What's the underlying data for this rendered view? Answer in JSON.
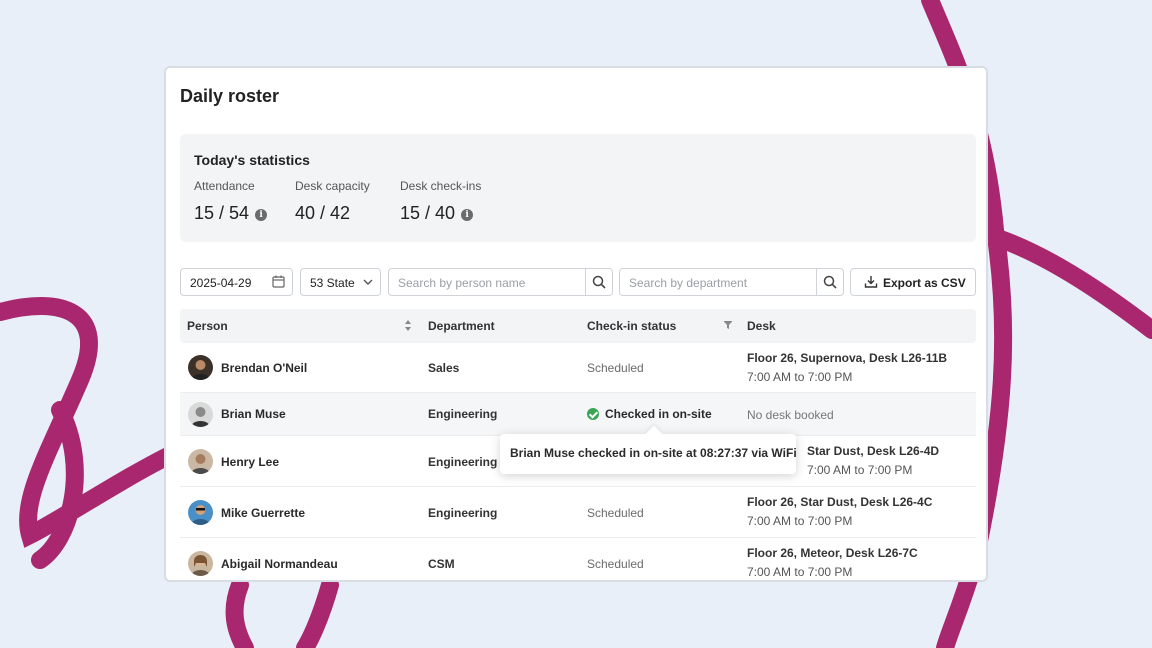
{
  "page_title": "Daily roster",
  "stats": {
    "title": "Today's statistics",
    "items": [
      {
        "label": "Attendance",
        "value": "15 / 54",
        "info": "i"
      },
      {
        "label": "Desk capacity",
        "value": "40 / 42"
      },
      {
        "label": "Desk check-ins",
        "value": "15 / 40",
        "info": "i"
      }
    ]
  },
  "toolbar": {
    "date": "2025-04-29",
    "location": "53 State",
    "person_search_placeholder": "Search by person name",
    "department_search_placeholder": "Search by department",
    "export_label": "Export as CSV"
  },
  "table": {
    "columns": [
      "Person",
      "Department",
      "Check-in status",
      "Desk"
    ],
    "rows": [
      {
        "person": "Brendan O'Neil",
        "department": "Sales",
        "status": "Scheduled",
        "desk": "Floor 26, Supernova, Desk L26-11B",
        "time": "7:00 AM to 7:00 PM"
      },
      {
        "person": "Brian Muse",
        "department": "Engineering",
        "status": "Checked in on-site",
        "desk": "No desk booked",
        "time": ""
      },
      {
        "person": "Henry Lee",
        "department": "Engineering",
        "status": "",
        "desk": "Star Dust, Desk L26-4D",
        "time": "7:00 AM to 7:00 PM"
      },
      {
        "person": "Mike Guerrette",
        "department": "Engineering",
        "status": "Scheduled",
        "desk": "Floor 26, Star Dust, Desk L26-4C",
        "time": "7:00 AM to 7:00 PM"
      },
      {
        "person": "Abigail Normandeau",
        "department": "CSM",
        "status": "Scheduled",
        "desk": "Floor 26, Meteor, Desk L26-7C",
        "time": "7:00 AM to 7:00 PM"
      }
    ]
  },
  "tooltip": "Brian Muse checked in on-site at 08:27:37 via WiFi",
  "colors": {
    "background": "#e9eff8",
    "accent_stroke": "#a8276e",
    "checked_in": "#3aa655"
  }
}
